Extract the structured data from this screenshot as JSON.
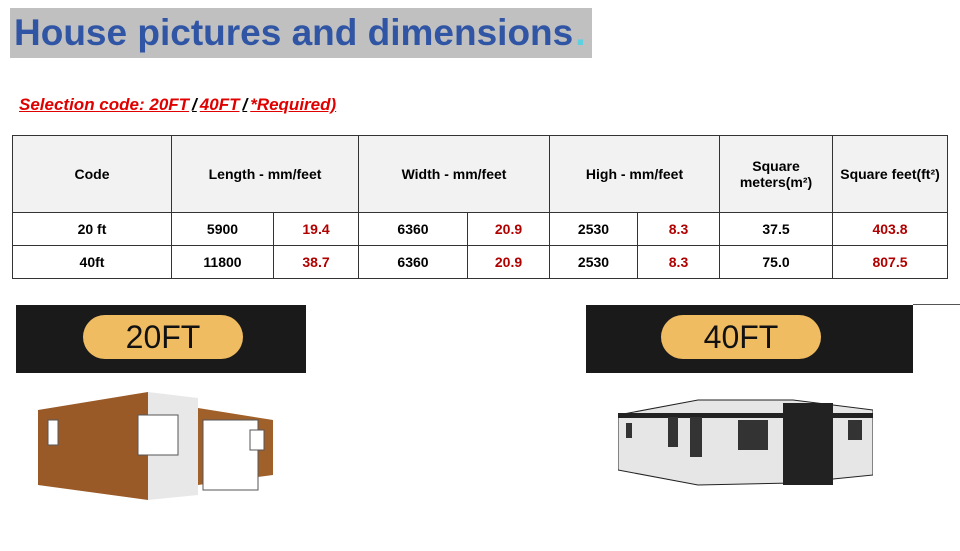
{
  "title": "House pictures and dimensions",
  "title_suffix": ".",
  "selection": {
    "prefix": "Selection code: 20FT",
    "sep1": "/",
    "mid": "40FT ",
    "sep2": "/",
    "suffix": "*Required)"
  },
  "table": {
    "headers": [
      "Code",
      "Length - mm/feet",
      "Width - mm/feet",
      "High - mm/feet",
      "Square meters(m²)",
      "Square feet(ft²)"
    ],
    "rows": [
      [
        "20 ft",
        "5900",
        "19.4",
        "6360",
        "20.9",
        "2530",
        "8.3",
        "37.5",
        "403.8"
      ],
      [
        "40ft",
        "11800",
        "38.7",
        "6360",
        "20.9",
        "2530",
        "8.3",
        "75.0",
        "807.5"
      ]
    ]
  },
  "banners": [
    "20FT",
    "40FT"
  ],
  "colors": {
    "title": "#2f55a4",
    "red": "#e00000",
    "pill": "#f0bc62"
  }
}
